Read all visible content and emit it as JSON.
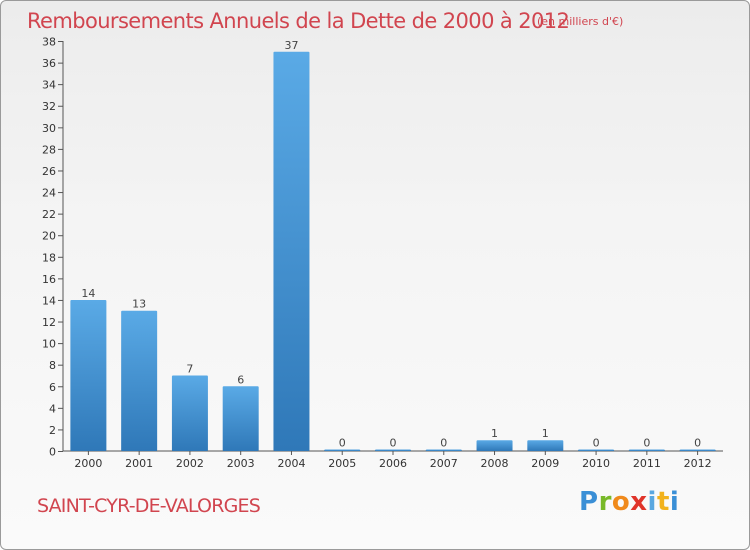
{
  "header": {
    "title": "Remboursements Annuels de la Dette de 2000 à 2012",
    "subtitle": "(en milliers d'€)"
  },
  "footer": {
    "commune": "SAINT-CYR-DE-VALORGES",
    "logo": {
      "letters": [
        "P",
        "r",
        "o",
        "x",
        "i",
        "t",
        "i"
      ]
    }
  },
  "chart_data": {
    "type": "bar",
    "title": "Remboursements Annuels de la Dette de 2000 à 2012",
    "subtitle": "(en milliers d'€)",
    "categories": [
      "2000",
      "2001",
      "2002",
      "2003",
      "2004",
      "2005",
      "2006",
      "2007",
      "2008",
      "2009",
      "2010",
      "2011",
      "2012"
    ],
    "values": [
      14,
      13,
      7,
      6,
      37,
      0,
      0,
      0,
      1,
      1,
      0,
      0,
      0
    ],
    "data_labels": [
      "14",
      "13",
      "7",
      "6",
      "37",
      "0",
      "0",
      "0",
      "1",
      "1",
      "0",
      "0",
      "0"
    ],
    "yticks": [
      0,
      2,
      4,
      6,
      8,
      10,
      12,
      14,
      16,
      18,
      20,
      22,
      24,
      26,
      28,
      30,
      32,
      34,
      36,
      38
    ],
    "ylim": [
      0,
      38
    ],
    "xlabel": "",
    "ylabel": "",
    "grid": false,
    "bar_color": "#3d8fd0"
  }
}
